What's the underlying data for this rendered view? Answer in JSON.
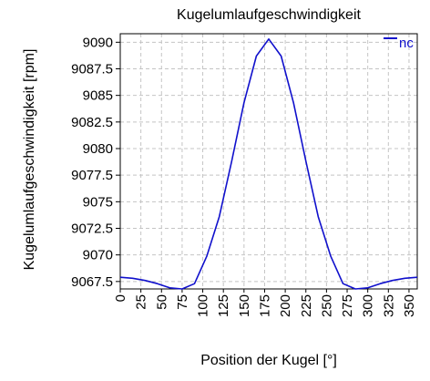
{
  "chart_data": {
    "type": "line",
    "title": "Kugelumlaufgeschwindigkeit",
    "xlabel": "Position der Kugel [°]",
    "ylabel": "Kugelumlaufgeschwindigkeit [rpm]",
    "xlim": [
      0,
      360
    ],
    "ylim": [
      9066.8,
      9090.8
    ],
    "grid": true,
    "legend_position": "top-right",
    "x_ticks": [
      0,
      25,
      50,
      75,
      100,
      125,
      150,
      175,
      200,
      225,
      250,
      275,
      300,
      325,
      350
    ],
    "y_ticks": [
      9067.5,
      9070,
      9072.5,
      9075,
      9077.5,
      9080,
      9082.5,
      9085,
      9087.5,
      9090
    ],
    "y_tick_labels": [
      "9067.5",
      "9070",
      "9072.5",
      "9075",
      "9077.5",
      "9080",
      "9082.5",
      "9085",
      "9087.5",
      "9090"
    ],
    "series": [
      {
        "name": "nc",
        "color": "#1010cc",
        "x": [
          0,
          15,
          30,
          45,
          60,
          75,
          90,
          105,
          120,
          135,
          150,
          165,
          180,
          195,
          210,
          225,
          240,
          255,
          270,
          285,
          300,
          315,
          330,
          345,
          360
        ],
        "y": [
          9067.9,
          9067.8,
          9067.6,
          9067.3,
          9066.9,
          9066.8,
          9067.3,
          9069.9,
          9073.6,
          9078.8,
          9084.3,
          9088.7,
          9090.3,
          9088.7,
          9084.3,
          9078.8,
          9073.6,
          9069.9,
          9067.3,
          9066.8,
          9066.9,
          9067.3,
          9067.6,
          9067.8,
          9067.9
        ]
      }
    ]
  }
}
